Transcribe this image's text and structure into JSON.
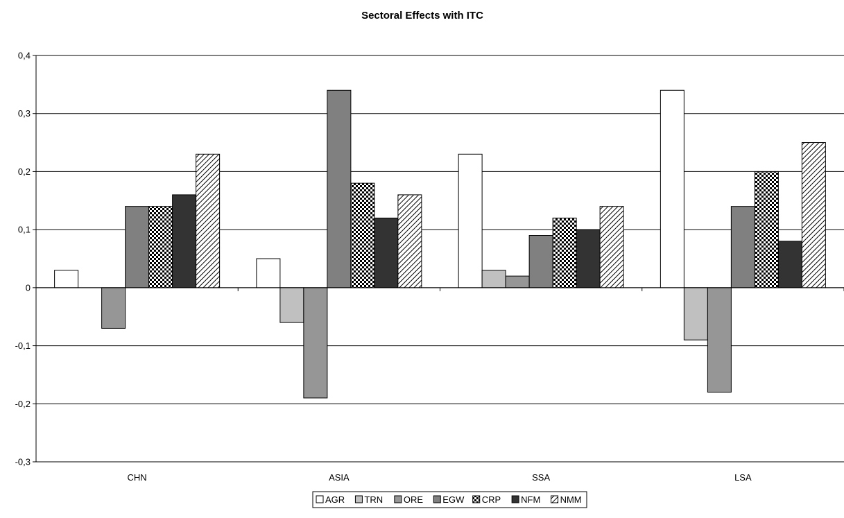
{
  "chart_data": {
    "type": "bar",
    "title": "Sectoral Effects with ITC",
    "xlabel": "",
    "ylabel": "",
    "categories": [
      "CHN",
      "ASIA",
      "SSA",
      "LSA"
    ],
    "ylim": [
      -0.3,
      0.4
    ],
    "yticks": [
      -0.3,
      -0.2,
      -0.1,
      0,
      0.1,
      0.2,
      0.3,
      0.4
    ],
    "ytick_labels": [
      "-0,3",
      "-0,2",
      "-0,1",
      "0",
      "0,1",
      "0,2",
      "0,3",
      "0,4"
    ],
    "grid": true,
    "legend_position": "bottom",
    "series": [
      {
        "name": "AGR",
        "values": [
          0.03,
          0.05,
          0.23,
          0.34
        ],
        "fill": "#ffffff",
        "pattern": "none"
      },
      {
        "name": "TRN",
        "values": [
          0,
          -0.06,
          0.03,
          -0.09
        ],
        "fill": "#c0c0c0",
        "pattern": "none"
      },
      {
        "name": "ORE",
        "values": [
          -0.07,
          -0.19,
          0.02,
          -0.18
        ],
        "fill": "#969696",
        "pattern": "none"
      },
      {
        "name": "EGW",
        "values": [
          0.14,
          0.34,
          0.09,
          0.14
        ],
        "fill": "#808080",
        "pattern": "none"
      },
      {
        "name": "CRP",
        "values": [
          0.14,
          0.18,
          0.12,
          0.2
        ],
        "fill": "#ffffff",
        "pattern": "checker"
      },
      {
        "name": "NFM",
        "values": [
          0.16,
          0.12,
          0.1,
          0.08
        ],
        "fill": "#333333",
        "pattern": "none"
      },
      {
        "name": "NMM",
        "values": [
          0.23,
          0.16,
          0.14,
          0.25
        ],
        "fill": "#ffffff",
        "pattern": "diagonal"
      }
    ]
  }
}
